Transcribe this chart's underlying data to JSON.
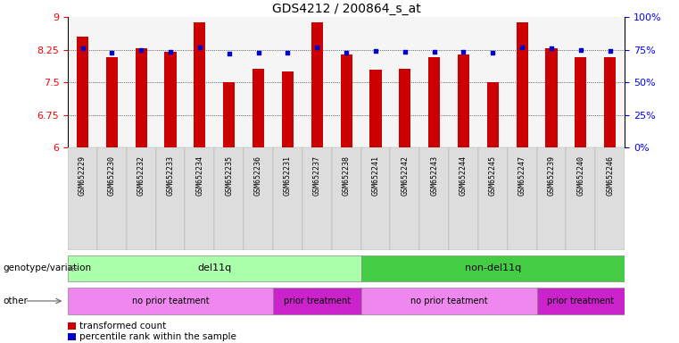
{
  "title": "GDS4212 / 200864_s_at",
  "samples": [
    "GSM652229",
    "GSM652230",
    "GSM652232",
    "GSM652233",
    "GSM652234",
    "GSM652235",
    "GSM652236",
    "GSM652231",
    "GSM652237",
    "GSM652238",
    "GSM652241",
    "GSM652242",
    "GSM652243",
    "GSM652244",
    "GSM652245",
    "GSM652247",
    "GSM652239",
    "GSM652240",
    "GSM652246"
  ],
  "bar_values": [
    8.55,
    8.08,
    8.28,
    8.2,
    8.88,
    7.5,
    7.82,
    7.75,
    8.88,
    8.15,
    7.8,
    7.82,
    8.08,
    8.15,
    7.5,
    8.88,
    8.28,
    8.08,
    8.08
  ],
  "dot_values": [
    8.28,
    8.19,
    8.25,
    8.21,
    8.3,
    8.17,
    8.19,
    8.19,
    8.3,
    8.19,
    8.22,
    8.2,
    8.2,
    8.21,
    8.19,
    8.3,
    8.28,
    8.25,
    8.22
  ],
  "bar_color": "#cc0000",
  "dot_color": "#0000cc",
  "ylim_left": [
    6,
    9
  ],
  "yticks_left": [
    6,
    6.75,
    7.5,
    8.25,
    9
  ],
  "ytick_labels_left": [
    "6",
    "6.75",
    "7.5",
    "8.25",
    "9"
  ],
  "ylim_right": [
    0,
    100
  ],
  "yticks_right": [
    0,
    25,
    50,
    75,
    100
  ],
  "ytick_labels_right": [
    "0%",
    "25%",
    "50%",
    "75%",
    "100%"
  ],
  "groups": {
    "genotype": [
      {
        "label": "del11q",
        "start": 0,
        "end": 10,
        "color": "#aaffaa"
      },
      {
        "label": "non-del11q",
        "start": 10,
        "end": 19,
        "color": "#44cc44"
      }
    ],
    "other": [
      {
        "label": "no prior teatment",
        "start": 0,
        "end": 7,
        "color": "#ee88ee"
      },
      {
        "label": "prior treatment",
        "start": 7,
        "end": 10,
        "color": "#cc22cc"
      },
      {
        "label": "no prior teatment",
        "start": 10,
        "end": 16,
        "color": "#ee88ee"
      },
      {
        "label": "prior treatment",
        "start": 16,
        "end": 19,
        "color": "#cc22cc"
      }
    ]
  },
  "row_labels": [
    "genotype/variation",
    "other"
  ],
  "legend": [
    {
      "label": "transformed count",
      "color": "#cc0000"
    },
    {
      "label": "percentile rank within the sample",
      "color": "#0000cc"
    }
  ],
  "background_color": "#ffffff",
  "title_fontsize": 10,
  "bar_width": 0.4
}
